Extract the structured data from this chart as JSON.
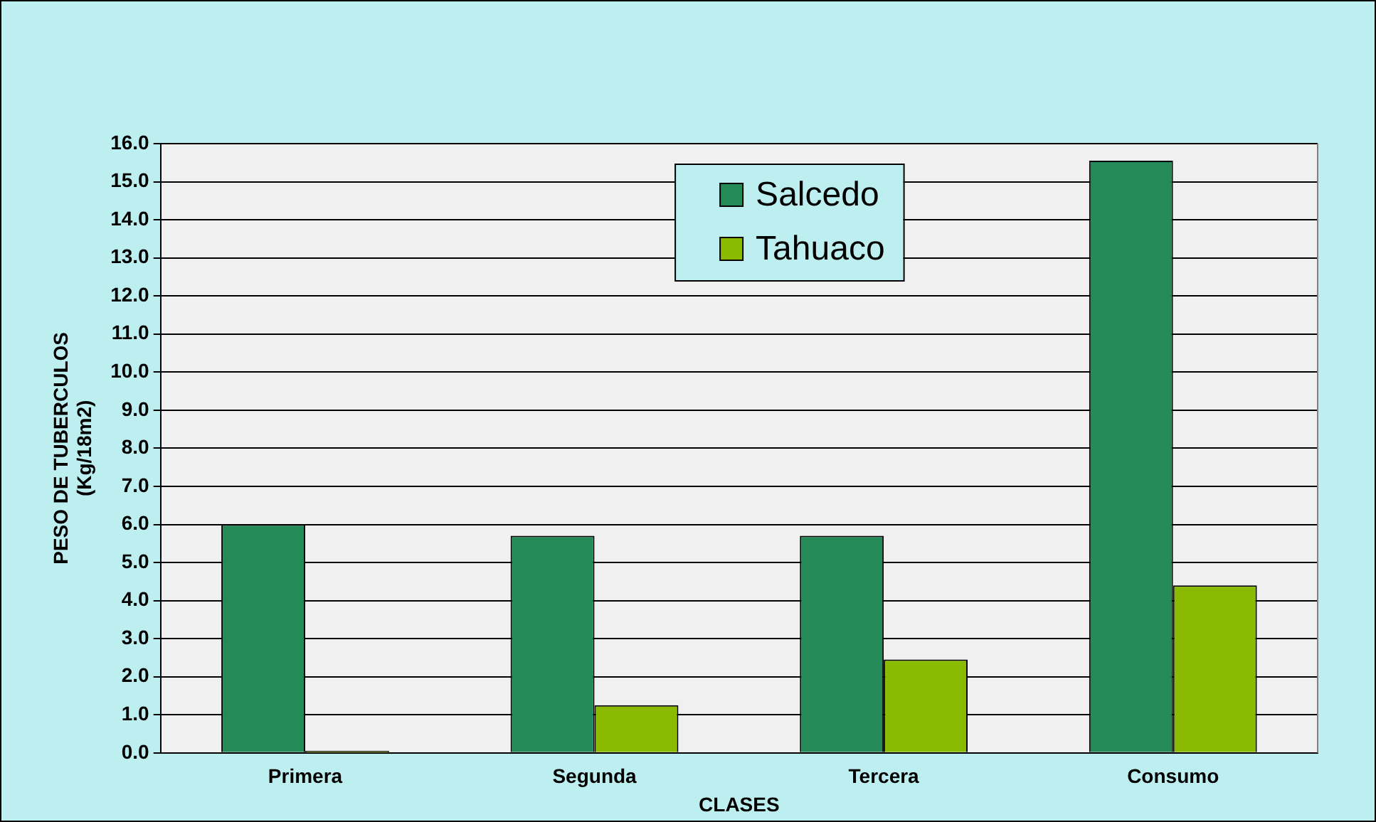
{
  "chart_data": {
    "type": "bar",
    "xlabel": "CLASES",
    "ylabel": "PESO DE TUBERCULOS\n(Kg/18m2)",
    "categories": [
      "Primera",
      "Segunda",
      "Tercera",
      "Consumo"
    ],
    "series": [
      {
        "name": "Salcedo",
        "color": "#238a58",
        "values": [
          6.0,
          5.7,
          5.7,
          15.55
        ]
      },
      {
        "name": "Tahuaco",
        "color": "#8abb00",
        "values": [
          0.05,
          1.25,
          2.45,
          4.4
        ]
      }
    ],
    "ylim": [
      0,
      16
    ],
    "yticks": [
      {
        "value": 0,
        "label": "0.0"
      },
      {
        "value": 1,
        "label": "1.0"
      },
      {
        "value": 2,
        "label": "2.0"
      },
      {
        "value": 3,
        "label": "3.0"
      },
      {
        "value": 4,
        "label": "4.0"
      },
      {
        "value": 5,
        "label": "5.0"
      },
      {
        "value": 6,
        "label": "6.0"
      },
      {
        "value": 7,
        "label": "7.0"
      },
      {
        "value": 8,
        "label": "8.0"
      },
      {
        "value": 9,
        "label": "9.0"
      },
      {
        "value": 10,
        "label": "10.0"
      },
      {
        "value": 11,
        "label": "11.0"
      },
      {
        "value": 12,
        "label": "12.0"
      },
      {
        "value": 13,
        "label": "13.0"
      },
      {
        "value": 14,
        "label": "14.0"
      },
      {
        "value": 15,
        "label": "15.0"
      },
      {
        "value": 16,
        "label": "16.0"
      }
    ],
    "grid": "y",
    "legend": "top"
  }
}
